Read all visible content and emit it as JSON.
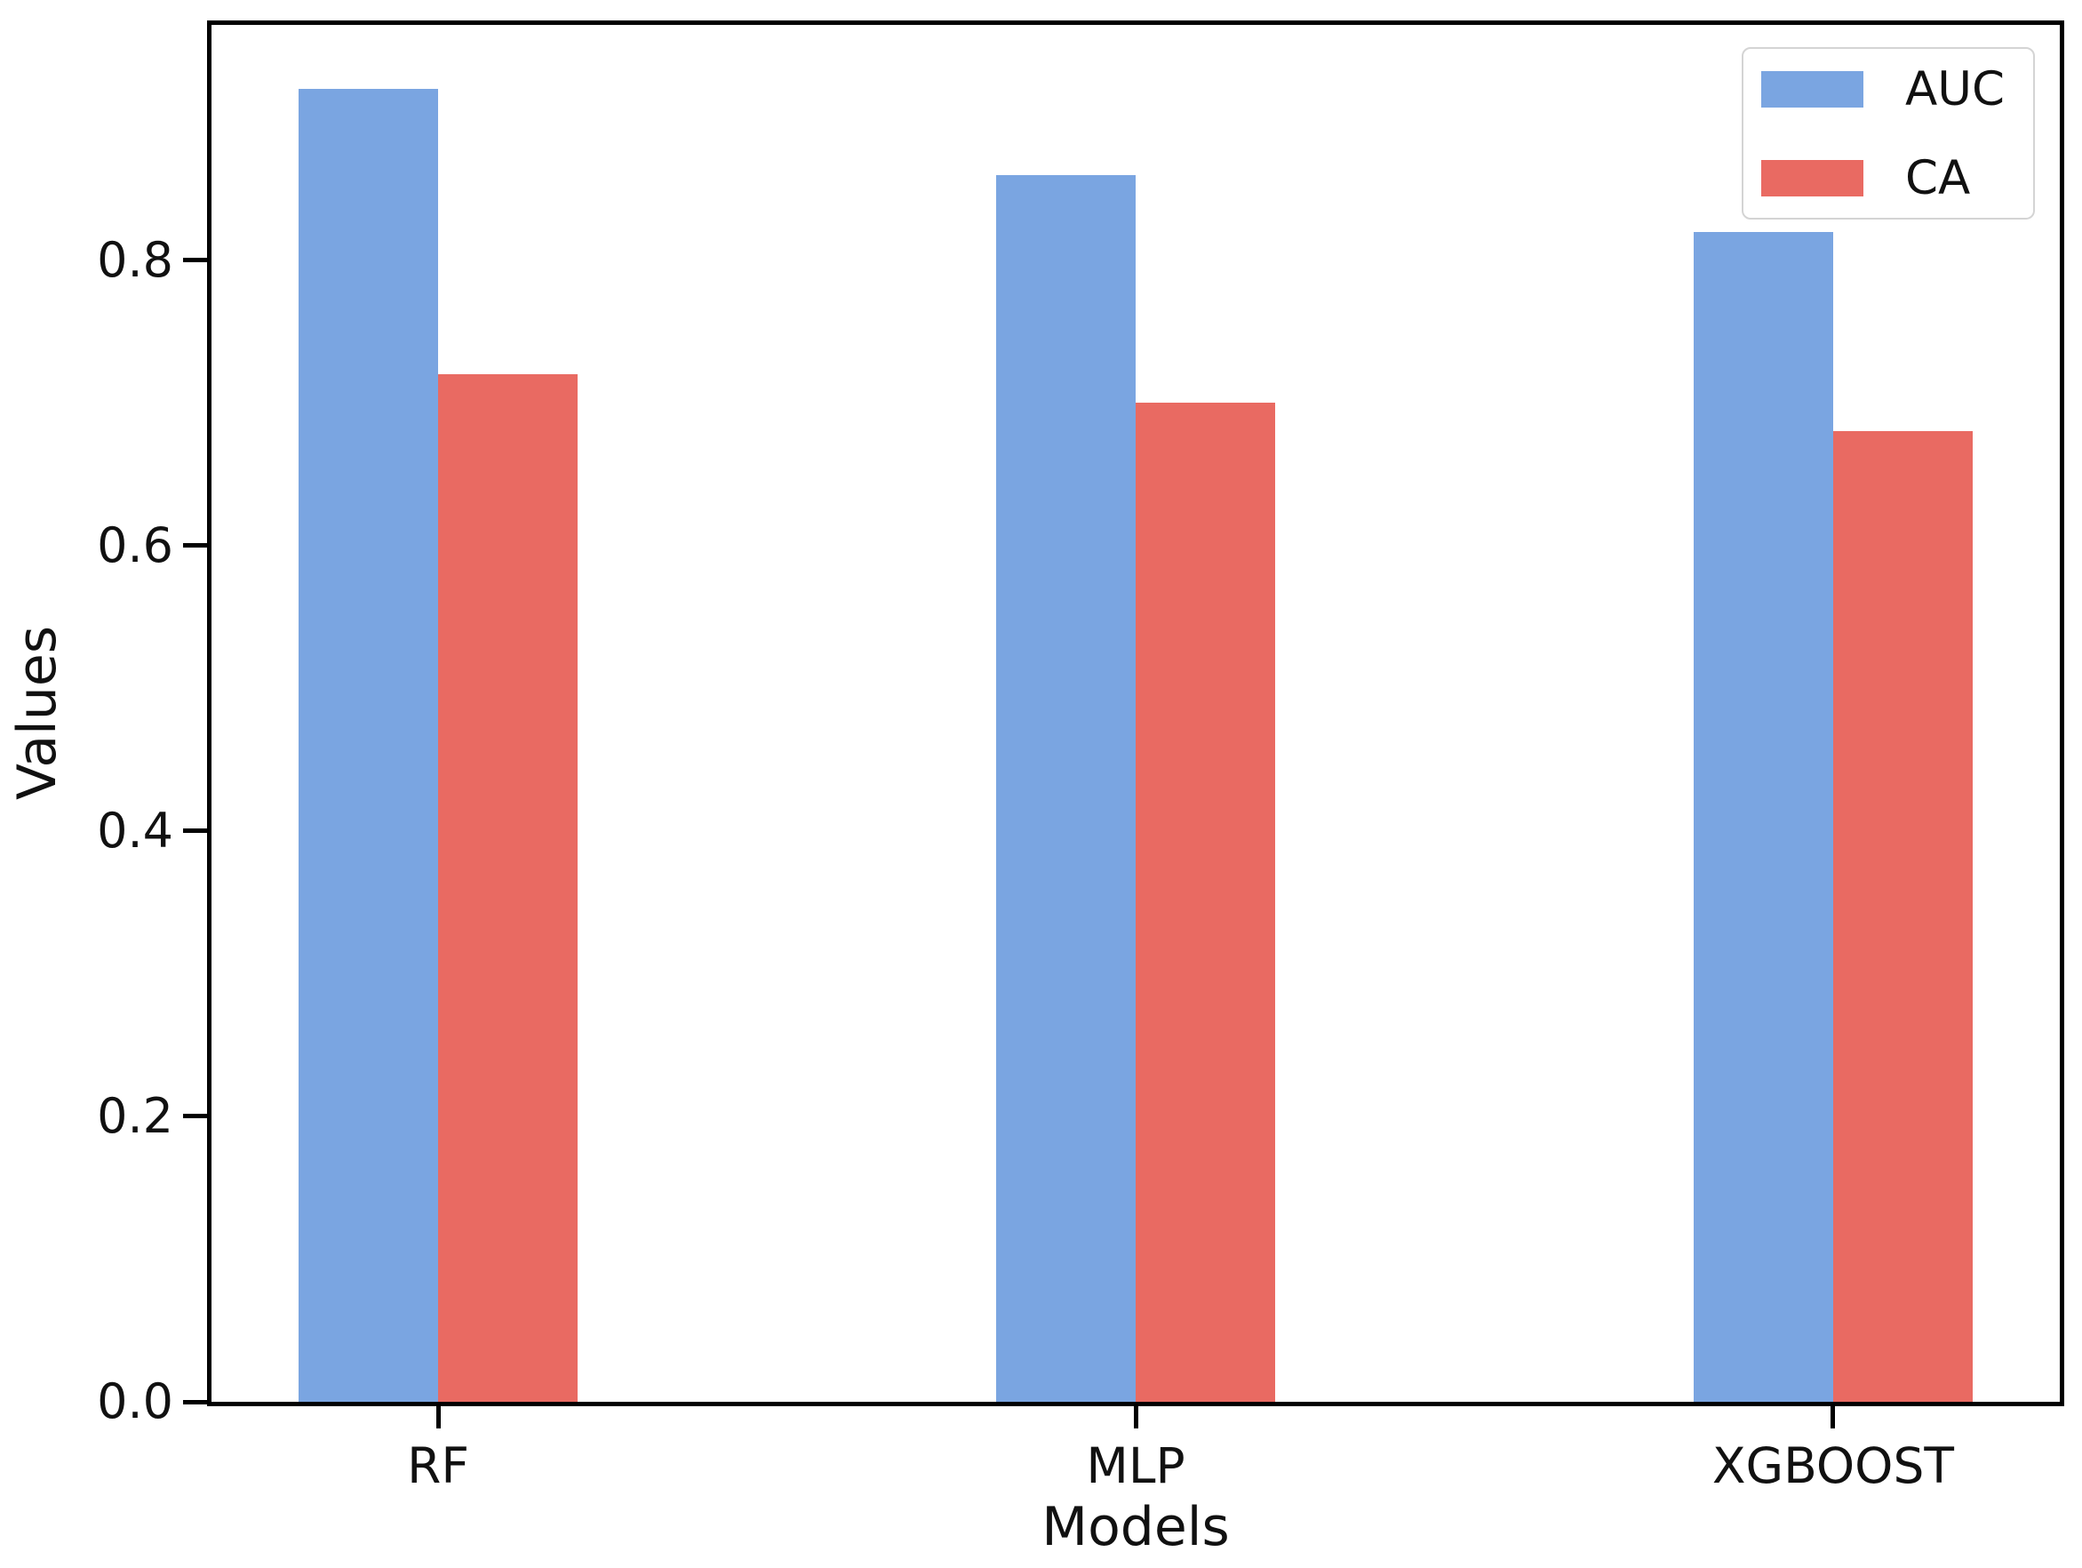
{
  "chart_data": {
    "type": "bar",
    "title": "",
    "xlabel": "Models",
    "ylabel": "Values",
    "categories": [
      "RF",
      "MLP",
      "XGBOOST"
    ],
    "series": [
      {
        "name": "AUC",
        "color": "#7aa5e1",
        "values": [
          0.92,
          0.86,
          0.82
        ]
      },
      {
        "name": "CA",
        "color": "#e96a62",
        "values": [
          0.72,
          0.7,
          0.68
        ]
      }
    ],
    "ylim": [
      0,
      0.965
    ],
    "yticks": [
      0.0,
      0.2,
      0.4,
      0.6,
      0.8
    ],
    "ytick_format_decimals": 1,
    "bar_width_category_units": 0.2,
    "x_edge_padding_category_units": 0.325,
    "grid": false,
    "legend_position": "upper right",
    "background_color": "#ffffff",
    "spine_color": "#000000",
    "text_color": "#111111"
  }
}
